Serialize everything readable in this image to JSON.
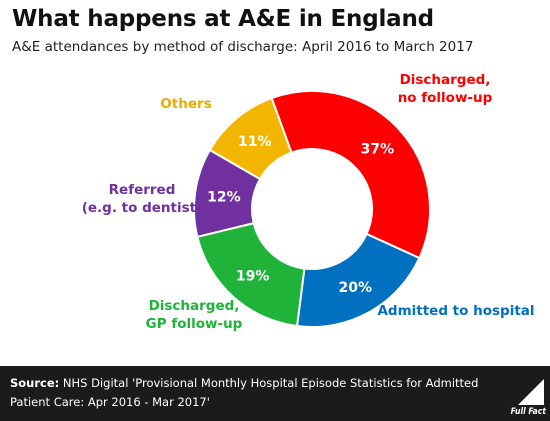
{
  "title": "What happens at A&E in England",
  "subtitle": "A&E attendances by method of discharge: April 2016 to March 2017",
  "chart_data": {
    "type": "pie",
    "title": "What happens at A&E in England",
    "subtitle": "A&E attendances by method of discharge: April 2016 to March 2017",
    "slices": [
      {
        "label_lines": [
          "Discharged,",
          "no follow-up"
        ],
        "value": 37,
        "value_label": "37%",
        "color": "#ff0000"
      },
      {
        "label_lines": [
          "Admitted to hospital"
        ],
        "value": 20,
        "value_label": "20%",
        "color": "#0070c0"
      },
      {
        "label_lines": [
          "Discharged,",
          "GP follow-up"
        ],
        "value": 19,
        "value_label": "19%",
        "color": "#1fb33a"
      },
      {
        "label_lines": [
          "Referred",
          "(e.g. to dentist)"
        ],
        "value": 12,
        "value_label": "12%",
        "color": "#7030a0"
      },
      {
        "label_lines": [
          "Others"
        ],
        "value": 11,
        "value_label": "11%",
        "color": "#f2b600"
      }
    ]
  },
  "footer": {
    "source_label": "Source:",
    "source_text": " NHS Digital 'Provisional Monthly Hospital Episode Statistics for Admitted Patient Care: Apr 2016 - Mar 2017'",
    "logo_text": "Full Fact"
  }
}
